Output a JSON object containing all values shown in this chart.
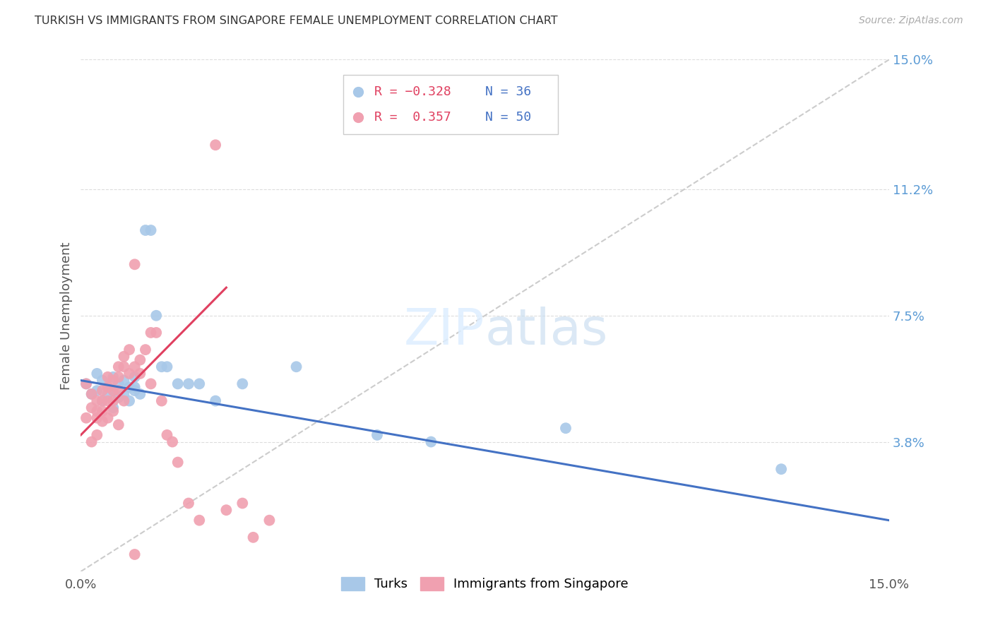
{
  "title": "TURKISH VS IMMIGRANTS FROM SINGAPORE FEMALE UNEMPLOYMENT CORRELATION CHART",
  "source": "Source: ZipAtlas.com",
  "ylabel": "Female Unemployment",
  "xmin": 0.0,
  "xmax": 0.15,
  "ymin": 0.0,
  "ymax": 0.15,
  "turks_color": "#a8c8e8",
  "singapore_color": "#f0a0b0",
  "trendline_turks_color": "#4472c4",
  "trendline_singapore_color": "#e04060",
  "diagonal_color": "#cccccc",
  "right_tick_color": "#5b9bd5",
  "turks_x": [
    0.001,
    0.002,
    0.003,
    0.003,
    0.004,
    0.004,
    0.005,
    0.005,
    0.006,
    0.006,
    0.006,
    0.007,
    0.007,
    0.008,
    0.008,
    0.009,
    0.009,
    0.01,
    0.01,
    0.01,
    0.011,
    0.012,
    0.013,
    0.014,
    0.015,
    0.016,
    0.018,
    0.02,
    0.022,
    0.025,
    0.03,
    0.04,
    0.055,
    0.065,
    0.09,
    0.13
  ],
  "turks_y": [
    0.055,
    0.052,
    0.058,
    0.053,
    0.05,
    0.056,
    0.054,
    0.052,
    0.057,
    0.053,
    0.048,
    0.055,
    0.051,
    0.056,
    0.052,
    0.05,
    0.054,
    0.053,
    0.057,
    0.054,
    0.052,
    0.1,
    0.1,
    0.075,
    0.06,
    0.06,
    0.055,
    0.055,
    0.055,
    0.05,
    0.055,
    0.06,
    0.04,
    0.038,
    0.042,
    0.03
  ],
  "singapore_x": [
    0.001,
    0.001,
    0.002,
    0.002,
    0.002,
    0.003,
    0.003,
    0.003,
    0.003,
    0.004,
    0.004,
    0.004,
    0.004,
    0.005,
    0.005,
    0.005,
    0.005,
    0.006,
    0.006,
    0.006,
    0.006,
    0.007,
    0.007,
    0.007,
    0.007,
    0.008,
    0.008,
    0.008,
    0.009,
    0.009,
    0.01,
    0.01,
    0.011,
    0.011,
    0.012,
    0.013,
    0.013,
    0.014,
    0.015,
    0.016,
    0.017,
    0.018,
    0.02,
    0.022,
    0.025,
    0.027,
    0.03,
    0.032,
    0.035,
    0.01
  ],
  "singapore_y": [
    0.055,
    0.045,
    0.052,
    0.048,
    0.038,
    0.05,
    0.047,
    0.045,
    0.04,
    0.053,
    0.05,
    0.047,
    0.044,
    0.057,
    0.054,
    0.05,
    0.045,
    0.056,
    0.053,
    0.05,
    0.047,
    0.06,
    0.057,
    0.053,
    0.043,
    0.063,
    0.06,
    0.05,
    0.065,
    0.058,
    0.09,
    0.06,
    0.062,
    0.058,
    0.065,
    0.07,
    0.055,
    0.07,
    0.05,
    0.04,
    0.038,
    0.032,
    0.02,
    0.015,
    0.125,
    0.018,
    0.02,
    0.01,
    0.015,
    0.005
  ],
  "legend_turks_R": "R = −0.328",
  "legend_turks_N": "N = 36",
  "legend_sing_R": "R =  0.357",
  "legend_sing_N": "N = 50"
}
